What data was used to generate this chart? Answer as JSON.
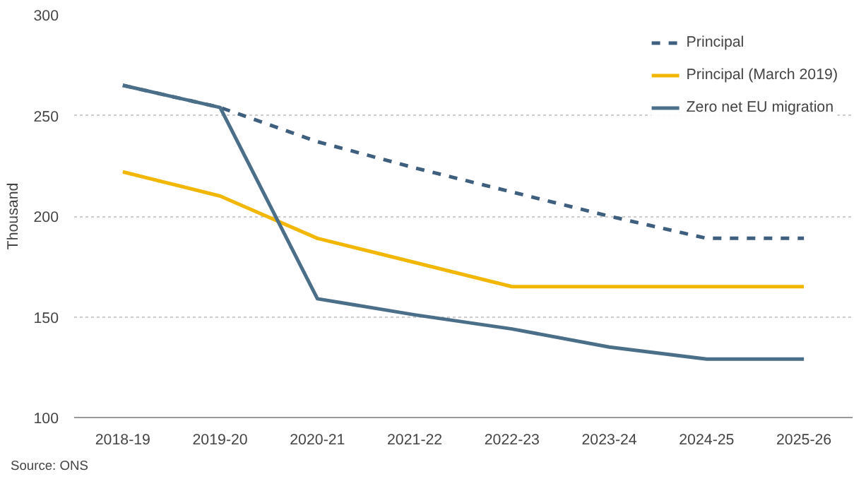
{
  "chart_data": {
    "type": "line",
    "ylabel": "Thousand",
    "categories": [
      "2018-19",
      "2019-20",
      "2020-21",
      "2021-22",
      "2022-23",
      "2023-24",
      "2024-25",
      "2025-26"
    ],
    "series": [
      {
        "name": "Principal",
        "color": "#3e5f7d",
        "line_style": "dashed",
        "values": [
          265,
          254,
          237,
          224,
          212,
          200,
          189,
          189
        ]
      },
      {
        "name": "Principal (March 2019)",
        "color": "#f2b705",
        "line_style": "solid",
        "values": [
          222,
          210,
          189,
          177,
          165,
          165,
          165,
          165
        ]
      },
      {
        "name": "Zero net EU migration",
        "color": "#4b6f88",
        "line_style": "solid",
        "values": [
          265,
          254,
          159,
          151,
          144,
          135,
          129,
          129
        ]
      }
    ],
    "ylim": [
      100,
      300
    ],
    "yticks": [
      100,
      150,
      200,
      250,
      300
    ],
    "grid": "y",
    "legend": "top right",
    "marker": "none",
    "annotations": [
      "Source: ONS"
    ]
  }
}
